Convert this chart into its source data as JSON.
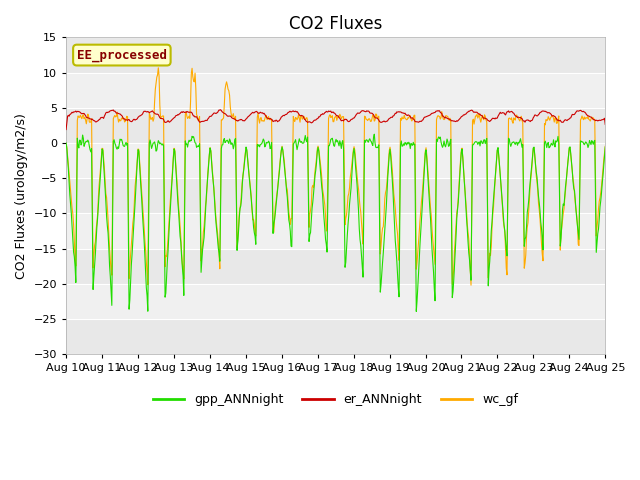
{
  "title": "CO2 Fluxes",
  "ylabel": "CO2 Fluxes (urology/m2/s)",
  "ylim": [
    -30,
    15
  ],
  "yticks": [
    -30,
    -25,
    -20,
    -15,
    -10,
    -5,
    0,
    5,
    10,
    15
  ],
  "n_days": 15,
  "points_per_day": 48,
  "title_fontsize": 12,
  "label_fontsize": 9,
  "tick_fontsize": 8,
  "legend_label": "EE_processed",
  "legend_bg": "#ffffcc",
  "legend_edge": "#bbbb00",
  "legend_text_color": "#880000",
  "series_colors": {
    "gpp_ANNnight": "#22dd00",
    "er_ANNnight": "#cc0000",
    "wc_gf": "#ffaa00"
  },
  "series_labels": [
    "gpp_ANNnight",
    "er_ANNnight",
    "wc_gf"
  ],
  "band_colors": [
    "#e8e8e8",
    "#f0f0f0"
  ],
  "spine_color": "#aaaaaa"
}
